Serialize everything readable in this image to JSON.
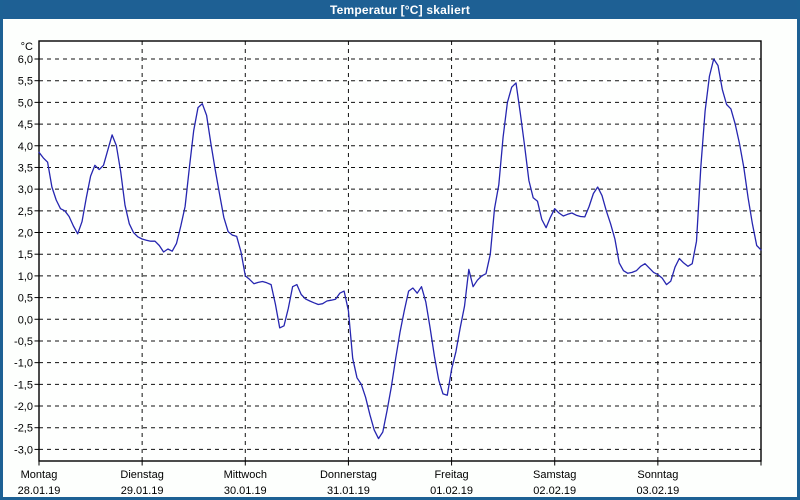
{
  "window": {
    "title": "Temperatur [°C] skaliert"
  },
  "colors": {
    "titlebar": "#1e6094",
    "window_border": "#1d6194",
    "background": "#fdfffd",
    "plot_background": "#fefffe",
    "grid": "#111111",
    "axis": "#000000",
    "line": "#2626b0",
    "label_text": "#000000",
    "title_text": "#ffffff"
  },
  "chart_data": {
    "type": "line",
    "title": "Temperatur [°C] skaliert",
    "unit_label": "°C",
    "grid": "dashed",
    "legend": "none",
    "y_axis": {
      "min": -3.0,
      "max": 6.0,
      "step": 0.5,
      "tick_labels": [
        "6,0",
        "5,5",
        "5,0",
        "4,5",
        "4,0",
        "3,5",
        "3,0",
        "2,5",
        "2,0",
        "1,5",
        "1,0",
        "0,5",
        "0,0",
        "-0,5",
        "-1,0",
        "-1,5",
        "-2,0",
        "-2,5",
        "-3,0"
      ]
    },
    "x_axis": {
      "unit": "hours",
      "points_per_day": 24,
      "days": [
        {
          "name": "Montag",
          "date": "28.01.19"
        },
        {
          "name": "Dienstag",
          "date": "29.01.19"
        },
        {
          "name": "Mittwoch",
          "date": "30.01.19"
        },
        {
          "name": "Donnerstag",
          "date": "31.01.19"
        },
        {
          "name": "Freitag",
          "date": "01.02.19"
        },
        {
          "name": "Samstag",
          "date": "02.02.19"
        },
        {
          "name": "Sonntag",
          "date": "03.02.19"
        }
      ]
    },
    "series": [
      {
        "name": "Temperatur",
        "unit": "°C",
        "sampling": "hourly",
        "values": [
          3.85,
          3.72,
          3.62,
          3.05,
          2.75,
          2.55,
          2.5,
          2.37,
          2.15,
          1.97,
          2.25,
          2.8,
          3.3,
          3.55,
          3.45,
          3.55,
          3.9,
          4.25,
          4.0,
          3.4,
          2.63,
          2.2,
          2.0,
          1.9,
          1.85,
          1.82,
          1.8,
          1.8,
          1.7,
          1.55,
          1.62,
          1.57,
          1.75,
          2.15,
          2.6,
          3.5,
          4.35,
          4.88,
          4.97,
          4.7,
          4.05,
          3.45,
          2.89,
          2.35,
          2.02,
          1.94,
          1.91,
          1.55,
          1.0,
          0.92,
          0.82,
          0.85,
          0.87,
          0.84,
          0.8,
          0.35,
          -0.2,
          -0.15,
          0.25,
          0.75,
          0.8,
          0.57,
          0.47,
          0.42,
          0.38,
          0.34,
          0.36,
          0.42,
          0.44,
          0.46,
          0.6,
          0.65,
          0.2,
          -0.9,
          -1.35,
          -1.5,
          -1.8,
          -2.2,
          -2.55,
          -2.75,
          -2.6,
          -2.1,
          -1.55,
          -0.9,
          -0.3,
          0.2,
          0.65,
          0.72,
          0.6,
          0.75,
          0.4,
          -0.2,
          -0.85,
          -1.4,
          -1.72,
          -1.75,
          -1.15,
          -0.75,
          -0.2,
          0.3,
          1.15,
          0.75,
          0.9,
          1.0,
          1.05,
          1.5,
          2.55,
          3.1,
          4.2,
          5.0,
          5.35,
          5.45,
          4.75,
          4.0,
          3.2,
          2.8,
          2.72,
          2.3,
          2.11,
          2.35,
          2.55,
          2.45,
          2.38,
          2.42,
          2.45,
          2.4,
          2.37,
          2.36,
          2.6,
          2.9,
          3.05,
          2.85,
          2.5,
          2.2,
          1.85,
          1.3,
          1.12,
          1.06,
          1.08,
          1.12,
          1.22,
          1.28,
          1.18,
          1.08,
          1.03,
          0.95,
          0.8,
          0.88,
          1.2,
          1.4,
          1.3,
          1.22,
          1.28,
          1.8,
          3.5,
          4.8,
          5.6,
          6.0,
          5.85,
          5.3,
          4.95,
          4.85,
          4.5,
          4.05,
          3.5,
          2.8,
          2.2,
          1.7,
          1.6
        ]
      }
    ]
  }
}
